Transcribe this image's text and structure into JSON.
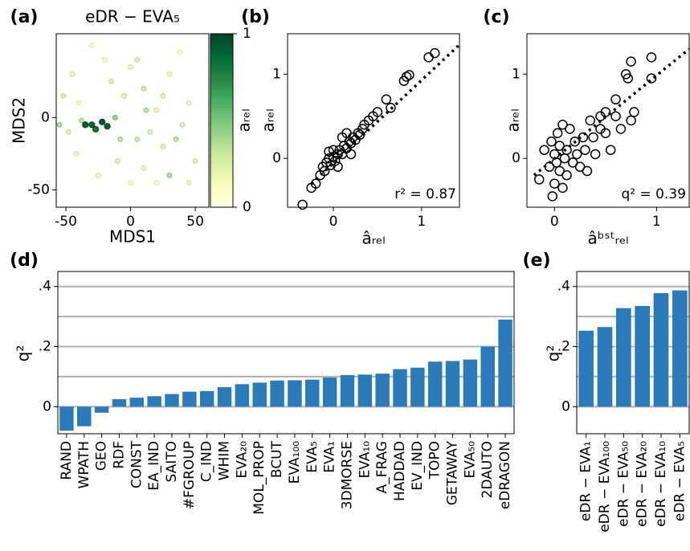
{
  "chart_data": [
    {
      "type": "scatter",
      "panel_label": "(a)",
      "title": "eDR − EVA₅",
      "xlabel": "MDS1",
      "ylabel": "MDS2",
      "x": [
        -52,
        -45,
        -40,
        -38,
        -35,
        -30,
        -27,
        -22,
        -18,
        -12,
        -5,
        0,
        5,
        10,
        15,
        20,
        25,
        30,
        35,
        40,
        45,
        50,
        -20,
        -25,
        -10,
        0,
        10,
        20,
        30,
        -48,
        -42,
        -15,
        5,
        12,
        -8,
        38,
        -30,
        45,
        -55,
        25
      ],
      "y": [
        15,
        30,
        10,
        -2,
        -5,
        -5,
        -8,
        -3,
        -6,
        0,
        15,
        35,
        40,
        20,
        -10,
        5,
        -20,
        30,
        -15,
        -5,
        10,
        -30,
        40,
        -40,
        -30,
        -45,
        -35,
        -45,
        -40,
        -10,
        -25,
        25,
        -15,
        5,
        -15,
        45,
        50,
        -45,
        -5,
        15
      ],
      "values": [
        0.2,
        0.15,
        0.1,
        0.3,
        0.9,
        0.85,
        0.8,
        0.95,
        0.9,
        0.4,
        0.2,
        0.15,
        0.2,
        0.25,
        0.2,
        0.15,
        0.2,
        0.15,
        0.3,
        0.2,
        0.15,
        0.2,
        0.1,
        0.15,
        0.2,
        0.1,
        0.15,
        0.1,
        0.35,
        0.2,
        0.15,
        0.2,
        0.25,
        0.3,
        0.3,
        0.1,
        0.1,
        0.15,
        0.35,
        0.2
      ],
      "colormap": [
        "#ffffe5",
        "#f7fcb9",
        "#d9f0a3",
        "#addd8e",
        "#78c679",
        "#41ab5d",
        "#238443",
        "#006837",
        "#004529"
      ],
      "colorbar_label": "aᵣₑₗ",
      "colorbar_lim": [
        0,
        1
      ],
      "colorbar_ticks": [
        0,
        1
      ],
      "xlim": [
        -57.5,
        60.5
      ],
      "xticks": [
        -50,
        0,
        50
      ],
      "ylim": [
        -62,
        58
      ],
      "yticks": [
        -50,
        0
      ]
    },
    {
      "type": "scatter",
      "panel_label": "(b)",
      "xlabel": "âᵣₑₗ",
      "ylabel": "aᵣₑₗ",
      "annotation": "r² = 0.87",
      "x": [
        -0.35,
        -0.25,
        -0.2,
        -0.15,
        -0.12,
        -0.1,
        -0.08,
        -0.05,
        -0.03,
        0,
        0.02,
        0.05,
        0.07,
        0.1,
        0.12,
        0.15,
        0.18,
        0.2,
        0.22,
        0.25,
        0.28,
        0.3,
        0.33,
        0.35,
        0.4,
        0.45,
        0.5,
        0.6,
        0.65,
        0.8,
        0.83,
        0.86,
        1.08,
        1.15,
        0.05,
        0,
        -0.05,
        0.15,
        0.1,
        0.2
      ],
      "y": [
        -0.55,
        -0.35,
        -0.3,
        -0.2,
        -0.1,
        -0.15,
        -0.05,
        0,
        -0.08,
        0.02,
        -0.03,
        0.05,
        0.1,
        0.05,
        0.15,
        0.12,
        0.2,
        0.18,
        0.25,
        0.22,
        0.3,
        0.28,
        0.35,
        0.4,
        0.45,
        0.5,
        0.55,
        0.7,
        0.6,
        0.92,
        0.97,
        0.99,
        1.2,
        1.25,
        -0.1,
        0.1,
        0.08,
        0.3,
        0.25,
        0.05
      ],
      "fit_line": {
        "x": [
          -0.25,
          1.43
        ],
        "y": [
          -0.3,
          1.35
        ]
      },
      "xlim": [
        -0.52,
        1.43
      ],
      "xticks": [
        0,
        1
      ],
      "ylim": [
        -0.58,
        1.48
      ],
      "yticks": [
        0,
        1
      ]
    },
    {
      "type": "scatter",
      "panel_label": "(c)",
      "xlabel": "âᵇˢᵗᵣₑₗ",
      "ylabel": "aᵣₑₗ",
      "annotation": "q² = 0.39",
      "x": [
        -0.15,
        -0.1,
        -0.05,
        -0.03,
        0,
        0,
        0.02,
        0.03,
        0.05,
        0.05,
        0.08,
        0.1,
        0.12,
        0.12,
        0.15,
        0.18,
        0.2,
        0.22,
        0.25,
        0.28,
        0.3,
        0.32,
        0.35,
        0.38,
        0.4,
        0.45,
        0.45,
        0.5,
        0.5,
        0.55,
        0.6,
        0.6,
        0.65,
        0.7,
        0.72,
        0.75,
        0.75,
        0.78,
        0.95,
        0.95,
        -0.02,
        0.08
      ],
      "y": [
        -0.25,
        0.1,
        -0.1,
        0.2,
        -0.3,
        0.05,
        -0.05,
        0.3,
        0.15,
        -0.15,
        0.4,
        0,
        -0.2,
        0.1,
        0.35,
        -0.05,
        0.2,
        0.05,
        -0.1,
        0.25,
        0.1,
        -0.15,
        0.45,
        0.25,
        0.05,
        0.35,
        0.5,
        0.3,
        0.55,
        0.1,
        0.5,
        0.7,
        0.35,
        1.0,
        0.95,
        1.15,
        0.45,
        0.55,
        1.2,
        0.95,
        -0.45,
        -0.35
      ],
      "fit_line": {
        "x": [
          -0.2,
          1.32
        ],
        "y": [
          -0.2,
          1.3
        ]
      },
      "xlim": [
        -0.27,
        1.32
      ],
      "xticks": [
        0,
        1
      ],
      "ylim": [
        -0.58,
        1.48
      ],
      "yticks": [
        0,
        1
      ]
    },
    {
      "type": "bar",
      "panel_label": "(d)",
      "ylabel": "q²",
      "color": "#2b7bba",
      "categories": [
        "RAND",
        "WPATH",
        "GEO",
        "RDF",
        "CONST",
        "EA_IND",
        "SAITO",
        "#FGROUP",
        "C_IND",
        "WHIM",
        "EVA₂₀",
        "MOL_PROP",
        "BCUT",
        "EVA₁₀₀",
        "EVA₅",
        "EVA₁",
        "3DMORSE",
        "EVA₁₀",
        "A_FRAG",
        "HADDAD",
        "EV_IND",
        "TOPO",
        "GETAWAY",
        "EVA₅₀",
        "2DAUTO",
        "eDRAGON"
      ],
      "values": [
        -0.08,
        -0.065,
        -0.02,
        0.025,
        0.03,
        0.035,
        0.042,
        0.05,
        0.052,
        0.065,
        0.075,
        0.08,
        0.087,
        0.088,
        0.09,
        0.097,
        0.105,
        0.107,
        0.11,
        0.125,
        0.13,
        0.15,
        0.152,
        0.157,
        0.2,
        0.29
      ],
      "ylim": [
        -0.09,
        0.45
      ],
      "yticks": [
        0,
        {
          "value": 0.2,
          "label": ".2"
        },
        {
          "value": 0.4,
          "label": ".4"
        }
      ],
      "grid_lines": [
        0,
        0.1,
        0.2,
        0.3,
        0.4
      ]
    },
    {
      "type": "bar",
      "panel_label": "(e)",
      "ylabel": "q²",
      "color": "#2b7bba",
      "categories": [
        "eDR − EVA₁",
        "eDR − EVA₁₀₀",
        "eDR − EVA₅₀",
        "eDR − EVA₂₀",
        "eDR − EVA₁₀",
        "eDR − EVA₅"
      ],
      "values": [
        0.253,
        0.265,
        0.328,
        0.335,
        0.378,
        0.387
      ],
      "ylim": [
        -0.09,
        0.45
      ],
      "yticks": [
        0,
        {
          "value": 0.2,
          "label": ".2"
        },
        {
          "value": 0.4,
          "label": ".4"
        }
      ],
      "grid_lines": [
        0,
        0.1,
        0.2,
        0.3,
        0.4
      ]
    }
  ]
}
